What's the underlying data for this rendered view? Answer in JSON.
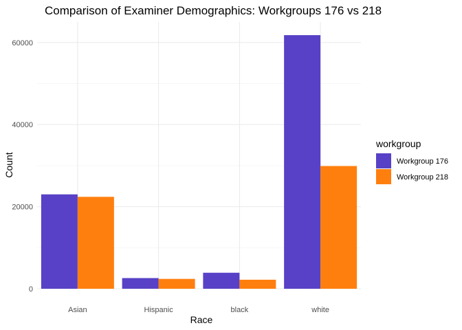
{
  "chart_data": {
    "type": "bar",
    "title": "Comparison of Examiner Demographics: Workgroups 176 vs 218",
    "xlabel": "Race",
    "ylabel": "Count",
    "categories": [
      "Asian",
      "Hispanic",
      "black",
      "white"
    ],
    "series": [
      {
        "name": "Workgroup 176",
        "color": "#5841C6",
        "values": [
          23000,
          2600,
          3900,
          61800
        ]
      },
      {
        "name": "Workgroup 218",
        "color": "#FF7F0E",
        "values": [
          22400,
          2400,
          2200,
          29900
        ]
      }
    ],
    "ylim": [
      0,
      65000
    ],
    "yticks": [
      0,
      20000,
      40000,
      60000
    ],
    "ytick_labels": [
      "0",
      "20000",
      "40000",
      "60000"
    ],
    "grid": true,
    "legend": {
      "title": "workgroup",
      "position": "right"
    }
  }
}
